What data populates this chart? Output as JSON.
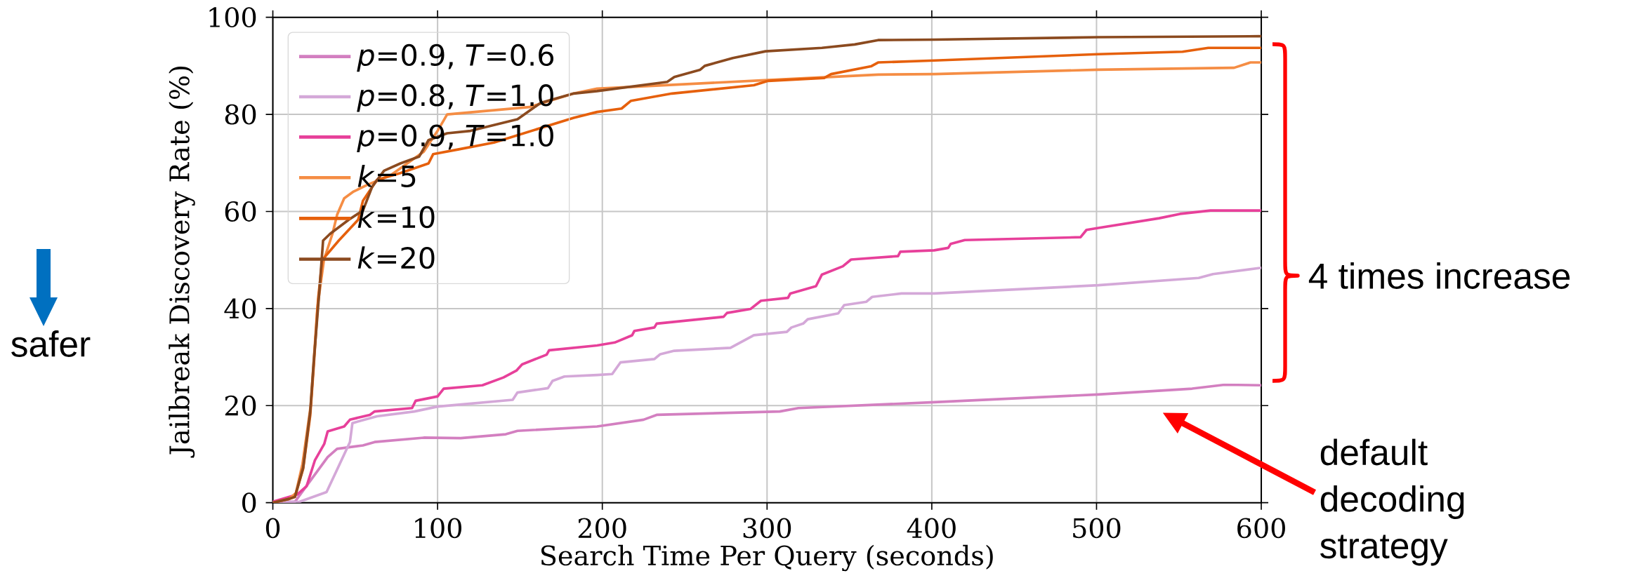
{
  "chart_data": {
    "type": "line",
    "xlabel": "Search Time Per Query (seconds)",
    "ylabel": "Jailbreak Discovery Rate (%)",
    "xlim": [
      0,
      600
    ],
    "ylim": [
      0,
      100
    ],
    "xticks": [
      0,
      100,
      200,
      300,
      400,
      500,
      600
    ],
    "yticks": [
      0,
      20,
      40,
      60,
      80,
      100
    ],
    "grid": true,
    "legend": "top left",
    "annotations": [
      "4 times increase",
      "default decoding strategy",
      "safer"
    ],
    "series": [
      {
        "name": "*p*=0.9, *T*=0.6",
        "color": "#d37fc0",
        "x": [
          0,
          13.4,
          33.3,
          39,
          54.7,
          61.8,
          91.6,
          114,
          141.4,
          148.5,
          196.8,
          225,
          233,
          307.7,
          319,
          401.5,
          501,
          558,
          577.7,
          600
        ],
        "values": [
          0.2,
          0.2,
          9.4,
          11.1,
          11.8,
          12.5,
          13.4,
          13.3,
          14.1,
          14.8,
          15.7,
          17.1,
          18.1,
          18.8,
          19.5,
          20.7,
          22.3,
          23.5,
          24.3,
          24.2
        ]
      },
      {
        "name": "*p*=0.8, *T*=1.0",
        "color": "#d4a8d8",
        "x": [
          0,
          16.3,
          32.6,
          38.3,
          46.8,
          48.3,
          63.2,
          85.9,
          100,
          145.6,
          148.5,
          167,
          169.8,
          177,
          196.8,
          206,
          211,
          231.6,
          235.2,
          243.7,
          277.8,
          292,
          312,
          314.8,
          321.9,
          324.7,
          343.2,
          346.8,
          360.3,
          363.8,
          381.6,
          401.5,
          501,
          562,
          570.7,
          600
        ],
        "values": [
          0,
          0.2,
          2.2,
          6.3,
          12.5,
          16.4,
          17.8,
          18.8,
          19.8,
          21.2,
          22.7,
          23.6,
          25.1,
          26,
          26.3,
          26.5,
          28.9,
          29.6,
          30.6,
          31.3,
          31.9,
          34.5,
          35.2,
          36.1,
          36.9,
          37.8,
          39,
          40.7,
          41.4,
          42.4,
          43.1,
          43.1,
          44.8,
          46.3,
          47.1,
          48.4
        ]
      },
      {
        "name": "*p*=0.9, *T*=1.0",
        "color": "#e7409a",
        "x": [
          0,
          14.8,
          20.5,
          25.5,
          31.2,
          33.3,
          43.3,
          46.8,
          58.9,
          61.8,
          84.5,
          86.7,
          100,
          103.7,
          127.2,
          140,
          147.8,
          151.3,
          166.2,
          167.7,
          196.8,
          207.5,
          218.1,
          219.5,
          231.6,
          233,
          273.6,
          275.7,
          289.9,
          296.3,
          312.7,
          314.1,
          329.7,
          333.3,
          346,
          351,
          379.5,
          380.9,
          401.5,
          410,
          411.4,
          420,
          490.3,
          493.9,
          501,
          538,
          550.7,
          569.2,
          600
        ],
        "values": [
          0.2,
          1.7,
          3.4,
          8.7,
          12.1,
          14.7,
          15.7,
          17.1,
          18.1,
          18.8,
          19.5,
          21,
          21.9,
          23.5,
          24.2,
          25.8,
          27.2,
          28.5,
          30.5,
          31.4,
          32.4,
          33,
          34.5,
          35.4,
          36.1,
          36.9,
          38.3,
          39.1,
          39.9,
          41.6,
          42.2,
          43.1,
          44.6,
          47,
          48.7,
          50.1,
          50.8,
          51.7,
          52,
          52.5,
          53.3,
          54.1,
          54.7,
          56.2,
          56.6,
          58.6,
          59.5,
          60.2,
          60.2
        ]
      },
      {
        "name": "*k*=5",
        "color": "#f58d44",
        "x": [
          0,
          10,
          14,
          18,
          23,
          27,
          31,
          36.2,
          39,
          43.3,
          49,
          57.5,
          71.7,
          91.6,
          100,
          105.8,
          155.6,
          182.6,
          196.8,
          296.3,
          367.4,
          401.5,
          501,
          583.5,
          593.4,
          600
        ],
        "values": [
          0,
          0.8,
          2,
          8,
          20,
          40,
          50,
          55.4,
          59.3,
          62.7,
          64.1,
          65.5,
          67.5,
          72.3,
          76.6,
          80,
          81.5,
          84.3,
          85.3,
          87,
          88.2,
          88.3,
          89.2,
          89.6,
          90.7,
          90.7
        ]
      },
      {
        "name": "*k*=10",
        "color": "#e6600c",
        "x": [
          0,
          10,
          13.4,
          18.4,
          22.7,
          24.8,
          27.5,
          30,
          40,
          51.8,
          54.7,
          63.2,
          77.4,
          94.5,
          97.3,
          112.9,
          134.2,
          182.6,
          196.8,
          211.7,
          217.4,
          242.3,
          292,
          300.6,
          334.7,
          338.9,
          363.1,
          367.4,
          401.5,
          501,
          552.2,
          567.8,
          600
        ],
        "values": [
          0,
          0.8,
          1.2,
          7,
          18,
          28,
          42,
          50,
          54,
          58.3,
          62.2,
          66.5,
          67.9,
          69.9,
          71.8,
          72.8,
          74.2,
          79.3,
          80.5,
          81.2,
          82.8,
          84.3,
          86,
          86.9,
          87.5,
          88.3,
          89.9,
          90.7,
          91.1,
          92.4,
          92.9,
          93.7,
          93.7
        ]
      },
      {
        "name": "*k*=20",
        "color": "#8b4a1f",
        "x": [
          0,
          10,
          13.4,
          18.4,
          22.7,
          24.8,
          28.4,
          30.5,
          34.8,
          46.1,
          54.7,
          60.3,
          67.5,
          77.4,
          88.8,
          94.5,
          105.8,
          120,
          148.5,
          162.7,
          182.6,
          196.8,
          239.4,
          243.7,
          259.4,
          262.2,
          279.2,
          299.1,
          333.3,
          353.2,
          367.4,
          401.5,
          501,
          600
        ],
        "values": [
          0,
          0.8,
          1.2,
          7.2,
          18.8,
          28.9,
          44.3,
          54,
          55.4,
          58.3,
          60.2,
          65.1,
          68.4,
          69.9,
          71.3,
          74.7,
          76.1,
          76.6,
          79,
          82.4,
          84.3,
          84.8,
          86.7,
          87.7,
          89.2,
          90,
          91.6,
          93,
          93.7,
          94.4,
          95.3,
          95.4,
          95.9,
          96.1
        ]
      }
    ]
  }
}
